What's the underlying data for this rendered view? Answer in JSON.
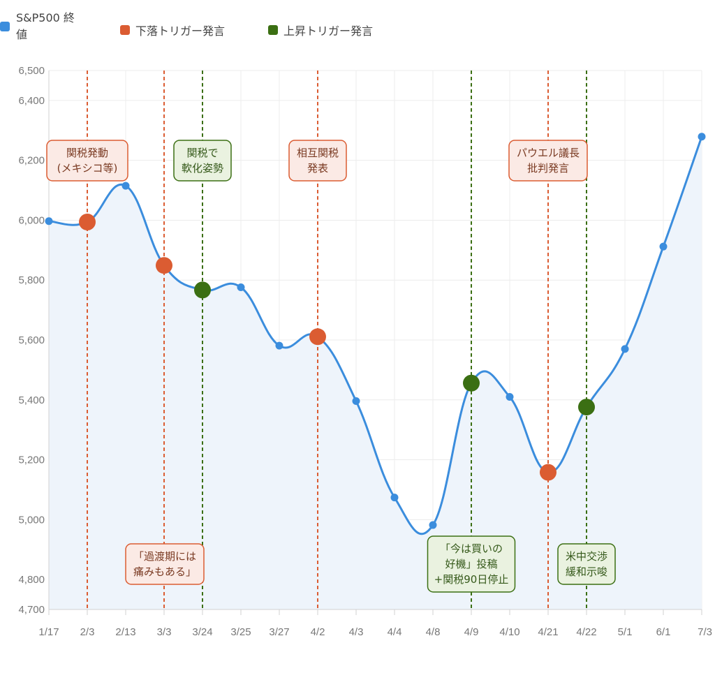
{
  "legend": [
    {
      "label_line1": "S&P500 終",
      "label_line2": "値",
      "color": "#3b8ddd"
    },
    {
      "label": "下落トリガー発言",
      "color": "#db5c32"
    },
    {
      "label": "上昇トリガー発言",
      "color": "#3b6f13"
    }
  ],
  "chart_data": {
    "type": "line",
    "title": "",
    "xlabel": "",
    "ylabel": "",
    "categories": [
      "1/17",
      "2/3",
      "2/13",
      "3/3",
      "3/24",
      "3/25",
      "3/27",
      "4/2",
      "4/3",
      "4/4",
      "4/8",
      "4/9",
      "4/10",
      "4/21",
      "4/22",
      "5/1",
      "6/1",
      "7/3"
    ],
    "series": [
      {
        "name": "S&P500 終値",
        "color": "#3b8ddd",
        "values": [
          5997,
          5994,
          6115,
          5849,
          5767,
          5776,
          5581,
          5611,
          5396,
          5074,
          4982,
          5456,
          5410,
          5158,
          5376,
          5570,
          5912,
          6279
        ]
      }
    ],
    "ylim": [
      4700,
      6500
    ],
    "yticks": [
      4700,
      4800,
      5000,
      5200,
      5400,
      5600,
      5800,
      6000,
      6200,
      6400,
      6500
    ],
    "ytick_labels": [
      "4,700",
      "4,800",
      "5,000",
      "5,200",
      "5,400",
      "5,600",
      "5,800",
      "6,000",
      "6,200",
      "6,400",
      "6,500"
    ],
    "grid": true,
    "legend_position": "top-left",
    "events": [
      {
        "date": "2/3",
        "kind": "down",
        "lines": [
          "関税発動",
          "(メキシコ等)"
        ],
        "placement": "top"
      },
      {
        "date": "3/3",
        "kind": "down",
        "lines": [
          "「過渡期には",
          "痛みもある」"
        ],
        "placement": "bottom"
      },
      {
        "date": "3/24",
        "kind": "up",
        "lines": [
          "関税で",
          "軟化姿勢"
        ],
        "placement": "top"
      },
      {
        "date": "4/2",
        "kind": "down",
        "lines": [
          "相互関税",
          "発表"
        ],
        "placement": "top"
      },
      {
        "date": "4/9",
        "kind": "up",
        "lines": [
          "「今は買いの",
          "好機」投稿",
          "+関税90日停止"
        ],
        "placement": "bottom"
      },
      {
        "date": "4/21",
        "kind": "down",
        "lines": [
          "パウエル議長",
          "批判発言"
        ],
        "placement": "top"
      },
      {
        "date": "4/22",
        "kind": "up",
        "lines": [
          "米中交渉",
          "緩和示唆"
        ],
        "placement": "bottom"
      }
    ]
  },
  "colors": {
    "line": "#3b8ddd",
    "fill": "#eef4fb",
    "down": "#db5c32",
    "down_bg": "#fbeae5",
    "down_text": "#7a3a22",
    "up": "#3b6f13",
    "up_bg": "#eaf2e0",
    "up_text": "#35591a",
    "grid": "#ececec",
    "axis": "#d0d0d0"
  }
}
